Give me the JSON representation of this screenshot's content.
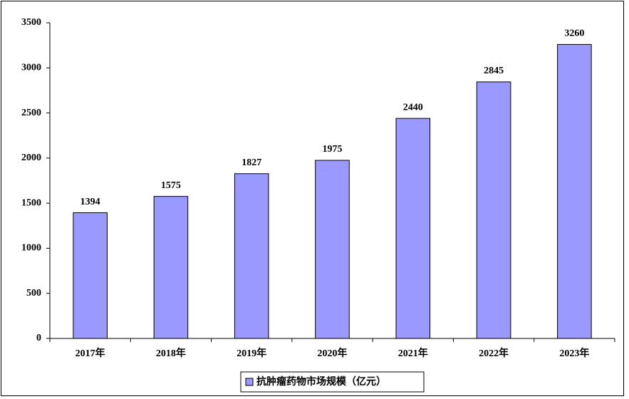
{
  "chart_data": {
    "type": "bar",
    "categories": [
      "2017年",
      "2018年",
      "2019年",
      "2020年",
      "2021年",
      "2022年",
      "2023年"
    ],
    "series": [
      {
        "name": "抗肿瘤药物市场规模（亿元）",
        "color": "#9999ff",
        "values": [
          1394,
          1575,
          1827,
          1975,
          2440,
          2845,
          3260
        ]
      }
    ],
    "ylim": [
      0,
      3500
    ],
    "yticks": [
      0,
      500,
      1000,
      1500,
      2000,
      2500,
      3000,
      3500
    ],
    "legend": "bottom"
  }
}
